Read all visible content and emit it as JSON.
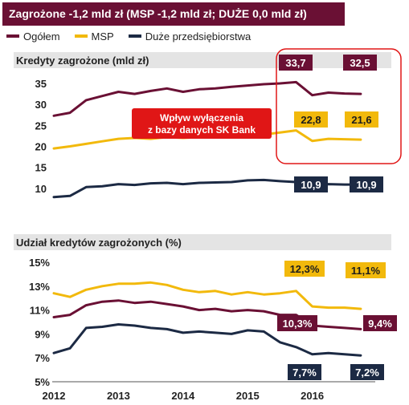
{
  "header": {
    "title": "Zagrożone -1,2 mld zł  (MSP -1,2 mld zł; DUŻE 0,0 mld zł)"
  },
  "legend": [
    {
      "label": "Ogółem",
      "color": "#6a1034"
    },
    {
      "label": "MSP",
      "color": "#f2b90c"
    },
    {
      "label": "Duże przedsiębiorstwa",
      "color": "#1c2a44"
    }
  ],
  "annotation": {
    "line1": "Wpływ wyłączenia",
    "line2": "z bazy danych SK Bank",
    "color": "#e01616"
  },
  "x_axis": {
    "ticks": [
      "2012",
      "2013",
      "2014",
      "2015",
      "2016"
    ]
  },
  "chart_data": [
    {
      "type": "line",
      "title": "Kredyty zagrożone (mld  zł)",
      "x": [
        2012.0,
        2012.25,
        2012.5,
        2012.75,
        2013.0,
        2013.25,
        2013.5,
        2013.75,
        2014.0,
        2014.25,
        2014.5,
        2014.75,
        2015.0,
        2015.25,
        2015.5,
        2015.75,
        2016.0,
        2016.25,
        2016.5,
        2016.75
      ],
      "ylim": [
        5,
        35
      ],
      "yticks": [
        "10",
        "15",
        "20",
        "25",
        "30",
        "35"
      ],
      "yticks_values": [
        10,
        15,
        20,
        25,
        30,
        35
      ],
      "series": [
        {
          "name": "Ogółem",
          "color": "#6a1034",
          "values": [
            27.3,
            28.0,
            31.0,
            32.0,
            33.0,
            32.5,
            33.2,
            33.8,
            33.0,
            33.6,
            33.8,
            34.2,
            34.5,
            34.8,
            35.0,
            35.3,
            32.2,
            32.8,
            32.6,
            32.5
          ]
        },
        {
          "name": "MSP",
          "color": "#f2b90c",
          "values": [
            19.5,
            20.0,
            20.6,
            21.2,
            21.8,
            22.0,
            21.8,
            22.2,
            22.0,
            22.2,
            22.4,
            22.2,
            22.6,
            22.8,
            23.3,
            23.8,
            21.3,
            21.8,
            21.7,
            21.6
          ]
        },
        {
          "name": "Duże przedsiębiorstwa",
          "color": "#1c2a44",
          "values": [
            7.9,
            8.2,
            10.3,
            10.5,
            11.0,
            10.8,
            11.2,
            11.3,
            11.0,
            11.3,
            11.4,
            11.5,
            11.9,
            12.0,
            11.7,
            11.5,
            10.9,
            11.0,
            10.9,
            10.9
          ]
        }
      ],
      "labels": [
        {
          "series": "Ogółem",
          "text": "33,7"
        },
        {
          "series": "Ogółem",
          "text": "32,5"
        },
        {
          "series": "MSP",
          "text": "22,8"
        },
        {
          "series": "MSP",
          "text": "21,6"
        },
        {
          "series": "Duże przedsiębiorstwa",
          "text": "10,9"
        },
        {
          "series": "Duże przedsiębiorstwa",
          "text": "10,9"
        }
      ]
    },
    {
      "type": "line",
      "title": "Udział  kredytów zagrożonych (%)",
      "x": [
        2012.0,
        2012.25,
        2012.5,
        2012.75,
        2013.0,
        2013.25,
        2013.5,
        2013.75,
        2014.0,
        2014.25,
        2014.5,
        2014.75,
        2015.0,
        2015.25,
        2015.5,
        2015.75,
        2016.0,
        2016.25,
        2016.5,
        2016.75
      ],
      "ylim": [
        5,
        15
      ],
      "yticks": [
        "5%",
        "7%",
        "9%",
        "11%",
        "13%",
        "15%"
      ],
      "yticks_values": [
        5,
        7,
        9,
        11,
        13,
        15
      ],
      "series": [
        {
          "name": "Ogółem",
          "color": "#6a1034",
          "values": [
            10.4,
            10.6,
            11.4,
            11.7,
            11.8,
            11.6,
            11.7,
            11.5,
            11.3,
            11.0,
            11.1,
            10.9,
            11.0,
            10.9,
            10.6,
            10.6,
            9.7,
            9.6,
            9.5,
            9.4
          ]
        },
        {
          "name": "MSP",
          "color": "#f2b90c",
          "values": [
            12.4,
            12.1,
            12.7,
            13.0,
            13.2,
            13.2,
            13.3,
            13.1,
            12.7,
            12.5,
            12.6,
            12.3,
            12.5,
            12.3,
            12.4,
            12.6,
            11.3,
            11.2,
            11.2,
            11.1
          ]
        },
        {
          "name": "Duże przedsiębiorstwa",
          "color": "#1c2a44",
          "values": [
            7.4,
            7.8,
            9.5,
            9.6,
            9.8,
            9.7,
            9.5,
            9.4,
            9.1,
            9.2,
            9.1,
            9.0,
            9.3,
            9.2,
            8.3,
            7.9,
            7.3,
            7.4,
            7.3,
            7.2
          ]
        }
      ],
      "labels": [
        {
          "series": "MSP",
          "text": "12,3%"
        },
        {
          "series": "MSP",
          "text": "11,1%"
        },
        {
          "series": "Ogółem",
          "text": "10,3%"
        },
        {
          "series": "Ogółem",
          "text": "9,4%"
        },
        {
          "series": "Duże przedsiębiorstwa",
          "text": "7,7%"
        },
        {
          "series": "Duże przedsiębiorstwa",
          "text": "7,2%"
        }
      ]
    }
  ]
}
